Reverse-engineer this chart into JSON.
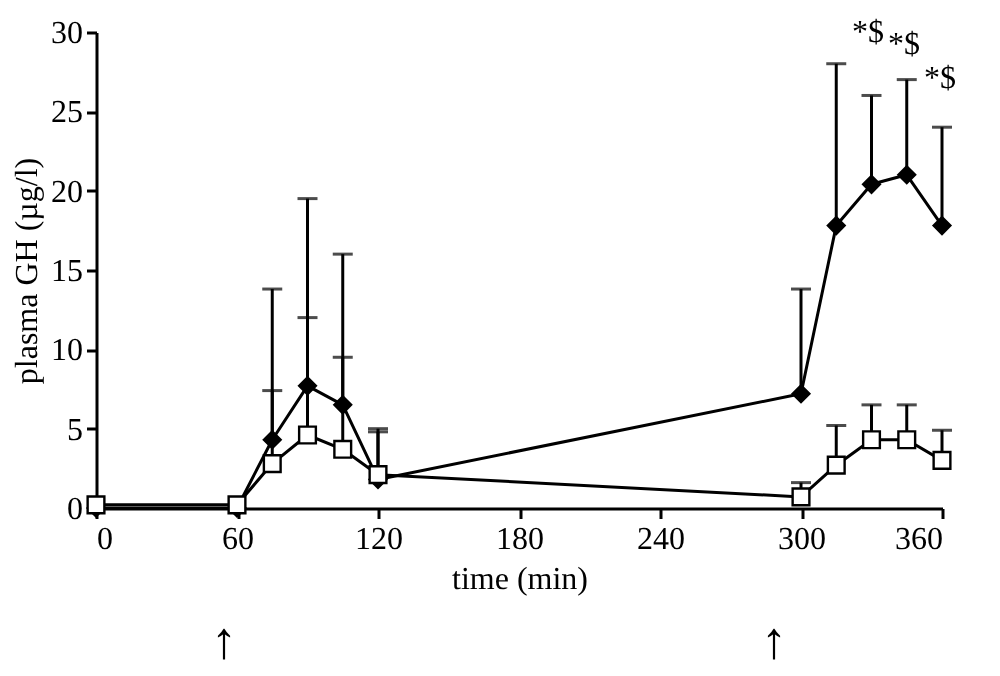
{
  "chart_data": {
    "type": "line",
    "xlabel": "time (min)",
    "ylabel": "plasma GH (µg/l)",
    "xlim": [
      0,
      360
    ],
    "xticks": [
      0,
      60,
      120,
      180,
      240,
      300,
      360
    ],
    "ylim": [
      0,
      30
    ],
    "yticks": [
      0,
      5,
      10,
      15,
      20,
      25,
      30
    ],
    "grid": false,
    "series": [
      {
        "color": "#000000",
        "marker": "diamond",
        "x": [
          0,
          60,
          75,
          90,
          105,
          120,
          300,
          315,
          330,
          345,
          360
        ],
        "values": [
          0,
          0,
          4.3,
          7.7,
          6.5,
          1.8,
          7.2,
          17.8,
          20.4,
          21,
          17.8
        ],
        "errors": [
          null,
          null,
          [
            4.3,
            13.8
          ],
          [
            7.7,
            19.5
          ],
          [
            6.5,
            16
          ],
          [
            1.8,
            4.8
          ],
          [
            7.2,
            13.8
          ],
          [
            17.8,
            28
          ],
          [
            20.4,
            26
          ],
          [
            21,
            27
          ],
          [
            17.8,
            24
          ]
        ]
      },
      {
        "color": "#ffffff",
        "marker": "square",
        "x": [
          0,
          60,
          75,
          90,
          105,
          120,
          300,
          315,
          330,
          345,
          360
        ],
        "values": [
          0.2,
          0.2,
          2.8,
          4.6,
          3.7,
          2.1,
          0.7,
          2.7,
          4.3,
          4.3,
          3.0
        ],
        "errors": [
          null,
          null,
          [
            2.8,
            7.4
          ],
          [
            4.6,
            12
          ],
          [
            3.7,
            9.5
          ],
          [
            2.1,
            5
          ],
          [
            0.7,
            1.6
          ],
          [
            2.7,
            5.2
          ],
          [
            4.3,
            6.5
          ],
          [
            4.3,
            6.5
          ],
          [
            3.0,
            4.9
          ]
        ]
      }
    ],
    "annotations": [
      "*$",
      "*$",
      "*$",
      "↑",
      "↑"
    ]
  }
}
